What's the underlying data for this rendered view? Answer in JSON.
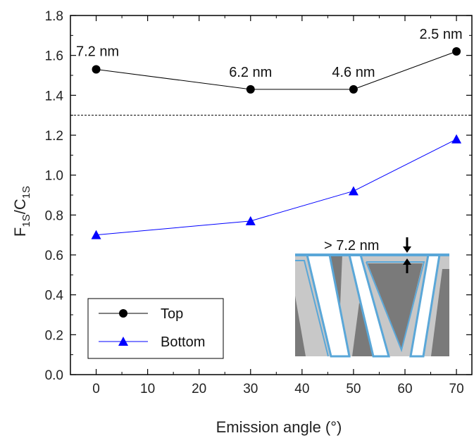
{
  "chart_data": {
    "type": "line",
    "xlabel": "Emission angle (°)",
    "ylabel": {
      "main_1": "F",
      "sub_1": "1S",
      "sep": "/C",
      "sub_2": "1S"
    },
    "xlim": [
      -5,
      73
    ],
    "ylim": [
      0,
      1.8
    ],
    "x_ticks": [
      0,
      10,
      20,
      30,
      40,
      50,
      60,
      70
    ],
    "y_ticks": [
      0.0,
      0.2,
      0.4,
      0.6,
      0.8,
      1.0,
      1.2,
      1.4,
      1.6,
      1.8
    ],
    "y_tick_labels": [
      "0.0",
      "0.2",
      "0.4",
      "0.6",
      "0.8",
      "1.0",
      "1.2",
      "1.4",
      "1.6",
      "1.8"
    ],
    "reference_line_y": 1.3,
    "grid": false,
    "legend_position": "bottom-left",
    "series": [
      {
        "name": "Top",
        "color": "#000000",
        "marker": "circle",
        "x": [
          0,
          30,
          50,
          70
        ],
        "y": [
          1.53,
          1.43,
          1.43,
          1.62
        ]
      },
      {
        "name": "Bottom",
        "color": "#0000ff",
        "marker": "triangle",
        "x": [
          0,
          30,
          50,
          70
        ],
        "y": [
          0.7,
          0.77,
          0.92,
          1.18
        ]
      }
    ],
    "annotations": [
      {
        "text": "7.2 nm",
        "x": 0,
        "y": 1.53
      },
      {
        "text": "6.2 nm",
        "x": 30,
        "y": 1.43
      },
      {
        "text": "4.6 nm",
        "x": 50,
        "y": 1.43
      },
      {
        "text": "2.5 nm",
        "x": 70,
        "y": 1.62
      }
    ],
    "inset": {
      "label": "> 7.2 nm",
      "colors": {
        "dark": "#7a7a7a",
        "light": "#c8c8c8",
        "coating": "#5aa7d8",
        "gap": "#ffffff"
      }
    }
  }
}
